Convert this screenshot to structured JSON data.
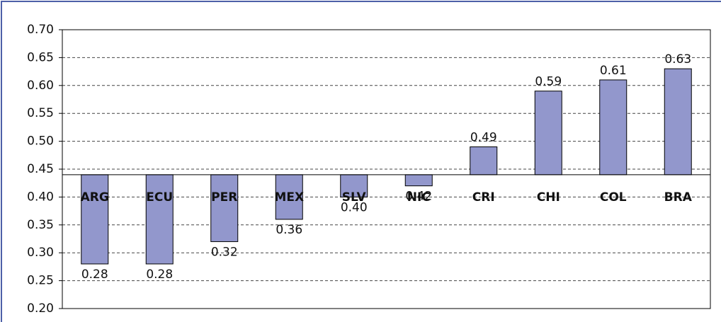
{
  "chart_data": {
    "type": "bar",
    "categories": [
      "ARG",
      "ECU",
      "PER",
      "MEX",
      "SLV",
      "NIC",
      "CRI",
      "CHI",
      "COL",
      "BRA"
    ],
    "values": [
      0.28,
      0.28,
      0.32,
      0.36,
      0.4,
      0.42,
      0.49,
      0.59,
      0.61,
      0.63
    ],
    "value_labels": [
      "0.28",
      "0.28",
      "0.32",
      "0.36",
      "0.40",
      "0.42",
      "0.49",
      "0.59",
      "0.61",
      "0.63"
    ],
    "color": "#9297cc",
    "baseline": 0.44,
    "ylim": [
      0.2,
      0.7
    ],
    "yticks": [
      {
        "value": 0.2,
        "label": "0.20"
      },
      {
        "value": 0.25,
        "label": "0.25"
      },
      {
        "value": 0.3,
        "label": "0.30"
      },
      {
        "value": 0.35,
        "label": "0.35"
      },
      {
        "value": 0.4,
        "label": "0.40"
      },
      {
        "value": 0.45,
        "label": "0.45"
      },
      {
        "value": 0.5,
        "label": "0.50"
      },
      {
        "value": 0.55,
        "label": "0.55"
      },
      {
        "value": 0.6,
        "label": "0.60"
      },
      {
        "value": 0.65,
        "label": "0.65"
      },
      {
        "value": 0.7,
        "label": "0.70"
      }
    ],
    "grid": true
  }
}
